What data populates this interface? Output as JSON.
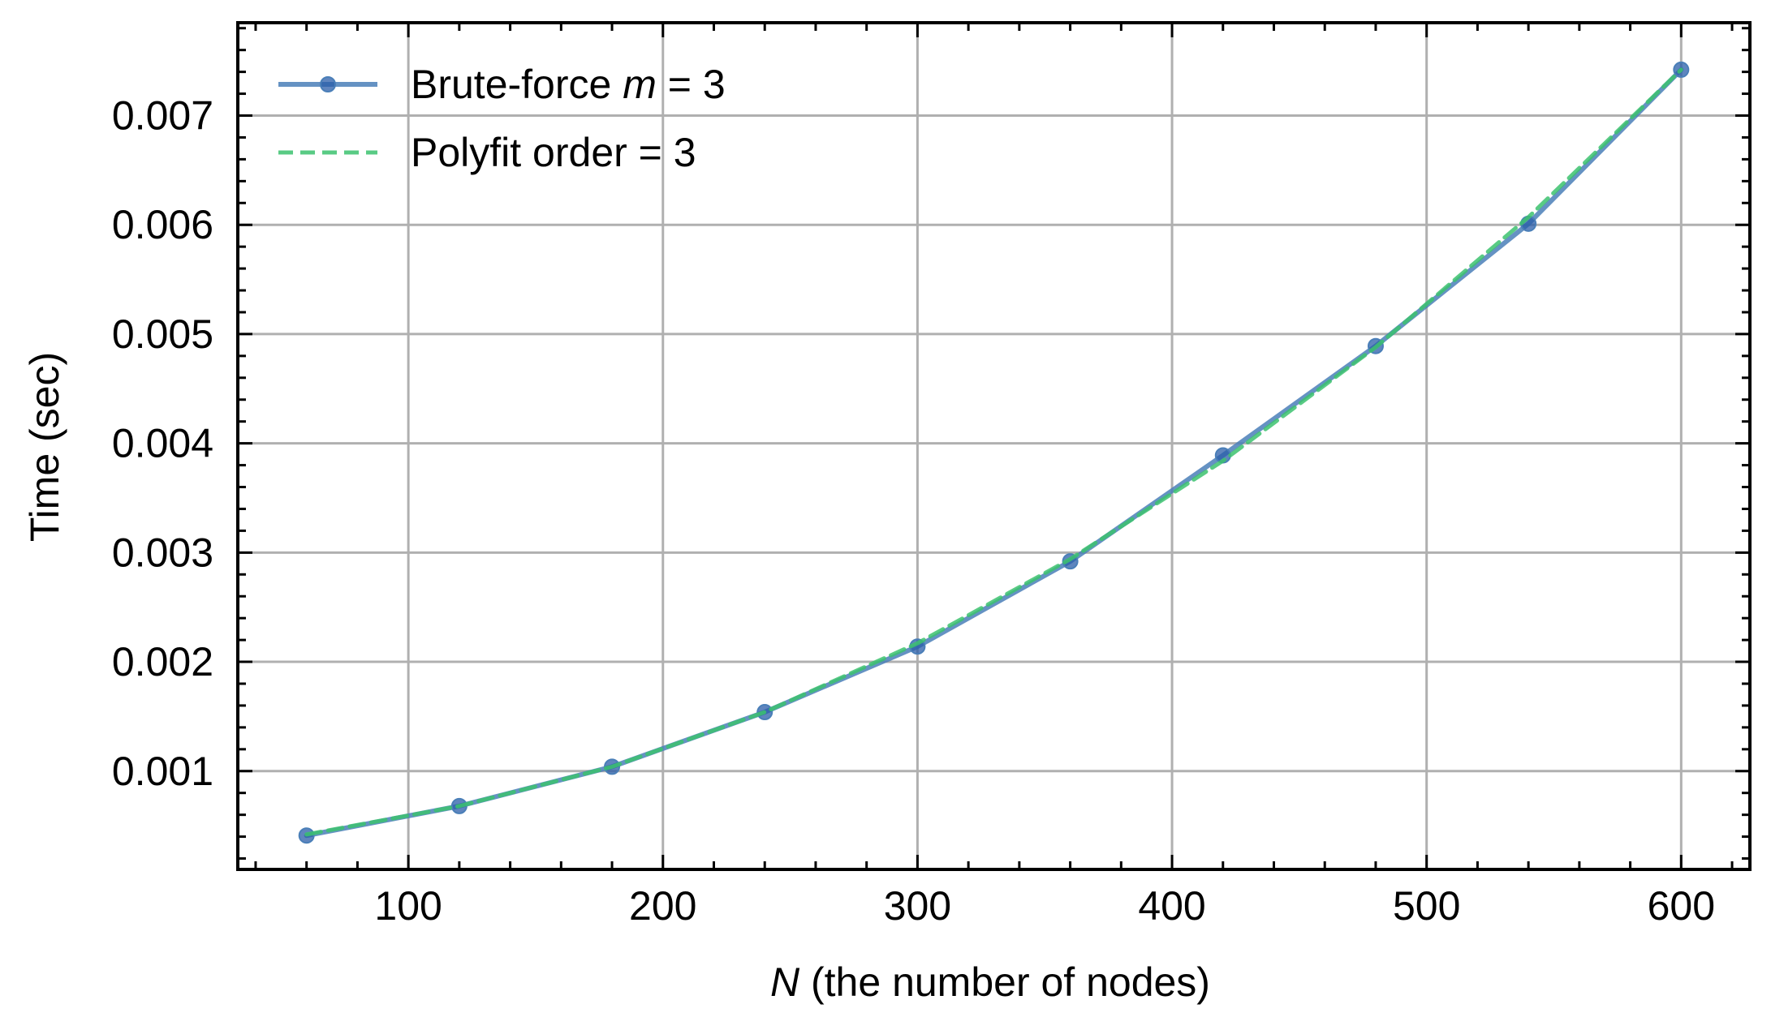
{
  "chart_data": {
    "type": "line",
    "xlabel_italic": "N",
    "xlabel_rest": " (the number of nodes)",
    "ylabel": "Time (sec)",
    "xlim": [
      33,
      627
    ],
    "ylim": [
      0.0001,
      0.00785
    ],
    "x_ticks": [
      100,
      200,
      300,
      400,
      500,
      600
    ],
    "x_tick_labels": [
      "100",
      "200",
      "300",
      "400",
      "500",
      "600"
    ],
    "y_ticks": [
      0.001,
      0.002,
      0.003,
      0.004,
      0.005,
      0.006,
      0.007
    ],
    "y_tick_labels": [
      "0.001",
      "0.002",
      "0.003",
      "0.004",
      "0.005",
      "0.006",
      "0.007"
    ],
    "grid": true,
    "legend_position": "top-left",
    "series": [
      {
        "name": "Brute-force m = 3",
        "legend_prefix": "Brute-force ",
        "legend_italic": "m",
        "legend_suffix": " = 3",
        "style": "solid-with-markers",
        "color": "#4a7fb8",
        "marker_color": "#2a5ca8",
        "x": [
          60,
          120,
          180,
          240,
          300,
          360,
          420,
          480,
          540,
          600
        ],
        "y": [
          0.00041,
          0.00068,
          0.00104,
          0.00154,
          0.00214,
          0.00292,
          0.00389,
          0.00489,
          0.00601,
          0.00742
        ]
      },
      {
        "name": "Polyfit order = 3",
        "legend_prefix": "Polyfit order = 3",
        "legend_italic": "",
        "legend_suffix": "",
        "style": "dashed",
        "color": "#3cc26e",
        "x": [
          60,
          120,
          180,
          240,
          300,
          360,
          420,
          480,
          540,
          600
        ],
        "y": [
          0.00042,
          0.00068,
          0.00104,
          0.00154,
          0.00217,
          0.00294,
          0.00384,
          0.00488,
          0.00607,
          0.00742
        ]
      }
    ]
  }
}
